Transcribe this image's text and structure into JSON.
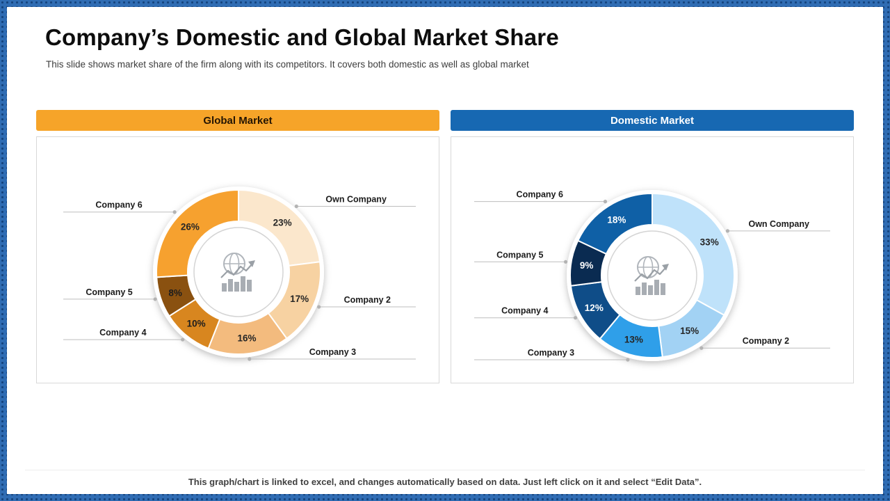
{
  "slide": {
    "title": "Company’s Domestic and Global Market Share",
    "subtitle": "This slide shows market share of the firm along with its competitors. It covers both domestic as well as global market",
    "footer_note": "This graph/chart is linked to excel, and changes automatically based on data. Just left click on it and select “Edit Data”."
  },
  "chart_data": [
    {
      "type": "pie",
      "variant": "donut",
      "title": "Global Market",
      "header_bg": "#F6A429",
      "header_text": "#241503",
      "legend_position": "callout-labels",
      "slices": [
        {
          "label": "Own Company",
          "value": 23,
          "color": "#FBE7CC",
          "pct_color": "#262626"
        },
        {
          "label": "Company 2",
          "value": 17,
          "color": "#F7D2A2",
          "pct_color": "#262626"
        },
        {
          "label": "Company 3",
          "value": 16,
          "color": "#F3BB7E",
          "pct_color": "#262626"
        },
        {
          "label": "Company 4",
          "value": 10,
          "color": "#D8861F",
          "pct_color": "#1d1d1d"
        },
        {
          "label": "Company 5",
          "value": 8,
          "color": "#8A5110",
          "pct_color": "#1d1d1d"
        },
        {
          "label": "Company 6",
          "value": 26,
          "color": "#F6A12F",
          "pct_color": "#262626"
        }
      ]
    },
    {
      "type": "pie",
      "variant": "donut",
      "title": "Domestic Market",
      "header_bg": "#1768B2",
      "header_text": "#FFFFFF",
      "legend_position": "callout-labels",
      "slices": [
        {
          "label": "Own Company",
          "value": 33,
          "color": "#BFE2FA",
          "pct_color": "#262626"
        },
        {
          "label": "Company 2",
          "value": 15,
          "color": "#A2D2F4",
          "pct_color": "#262626"
        },
        {
          "label": "Company 3",
          "value": 13,
          "color": "#2F9FE9",
          "pct_color": "#262626"
        },
        {
          "label": "Company 4",
          "value": 12,
          "color": "#0F4D88",
          "pct_color": "#FFFFFF"
        },
        {
          "label": "Company 5",
          "value": 9,
          "color": "#0A2B51",
          "pct_color": "#FFFFFF"
        },
        {
          "label": "Company 6",
          "value": 18,
          "color": "#0F60A6",
          "pct_color": "#FFFFFF"
        }
      ]
    }
  ]
}
